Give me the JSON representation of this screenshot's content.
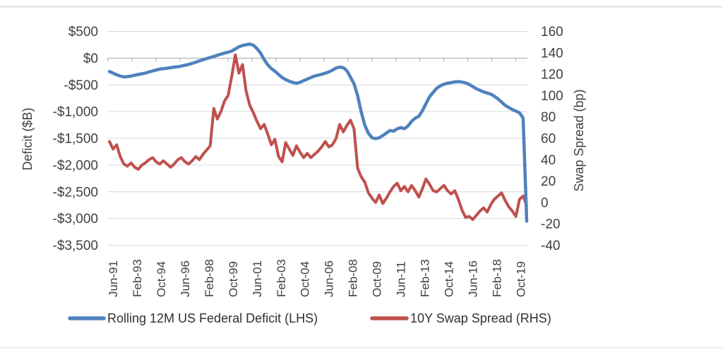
{
  "chart_data": {
    "type": "line",
    "title": "",
    "grid": true,
    "legend_position": "bottom",
    "background_color": "#FFFFFF",
    "gridline_color": "#D9D9D9",
    "zero_axis_color": "#A6A6A6",
    "text_color": "#404040",
    "left_axis": {
      "title": "Deficit ($B)",
      "min": -3500,
      "max": 500,
      "tick_step": 500,
      "tick_labels": [
        "$500",
        "$0",
        "-$500",
        "-$1,000",
        "-$1,500",
        "-$2,000",
        "-$2,500",
        "-$3,000",
        "-$3,500"
      ]
    },
    "right_axis": {
      "title": "Swap Spread (bp)",
      "min": -40,
      "max": 160,
      "tick_step": 20,
      "tick_labels": [
        "160",
        "140",
        "120",
        "100",
        "80",
        "60",
        "40",
        "20",
        "0",
        "-20",
        "-40"
      ]
    },
    "x_axis": {
      "tick_interval_months": 20,
      "total_months": 348,
      "tick_labels": [
        "Jun-91",
        "Feb-93",
        "Oct-94",
        "Jun-96",
        "Feb-98",
        "Oct-99",
        "Jun-01",
        "Feb-03",
        "Oct-04",
        "Jun-06",
        "Feb-08",
        "Oct-09",
        "Jun-11",
        "Feb-13",
        "Oct-14",
        "Jun-16",
        "Feb-18",
        "Oct-19"
      ]
    },
    "categories": [
      "Jun-91",
      "Sep-91",
      "Dec-91",
      "Mar-92",
      "Jun-92",
      "Sep-92",
      "Dec-92",
      "Mar-93",
      "Jun-93",
      "Sep-93",
      "Dec-93",
      "Mar-94",
      "Jun-94",
      "Sep-94",
      "Dec-94",
      "Mar-95",
      "Jun-95",
      "Sep-95",
      "Dec-95",
      "Mar-96",
      "Jun-96",
      "Sep-96",
      "Dec-96",
      "Mar-97",
      "Jun-97",
      "Sep-97",
      "Dec-97",
      "Mar-98",
      "Jun-98",
      "Sep-98",
      "Dec-98",
      "Mar-99",
      "Jun-99",
      "Sep-99",
      "Dec-99",
      "Mar-00",
      "Jun-00",
      "Sep-00",
      "Dec-00",
      "Mar-01",
      "Jun-01",
      "Sep-01",
      "Dec-01",
      "Mar-02",
      "Jun-02",
      "Sep-02",
      "Dec-02",
      "Mar-03",
      "Jun-03",
      "Sep-03",
      "Dec-03",
      "Mar-04",
      "Jun-04",
      "Sep-04",
      "Dec-04",
      "Mar-05",
      "Jun-05",
      "Sep-05",
      "Dec-05",
      "Mar-06",
      "Jun-06",
      "Sep-06",
      "Dec-06",
      "Mar-07",
      "Jun-07",
      "Sep-07",
      "Dec-07",
      "Mar-08",
      "Jun-08",
      "Sep-08",
      "Dec-08",
      "Mar-09",
      "Jun-09",
      "Sep-09",
      "Dec-09",
      "Mar-10",
      "Jun-10",
      "Sep-10",
      "Dec-10",
      "Mar-11",
      "Jun-11",
      "Sep-11",
      "Dec-11",
      "Mar-12",
      "Jun-12",
      "Sep-12",
      "Dec-12",
      "Mar-13",
      "Jun-13",
      "Sep-13",
      "Dec-13",
      "Mar-14",
      "Jun-14",
      "Sep-14",
      "Dec-14",
      "Mar-15",
      "Jun-15",
      "Sep-15",
      "Dec-15",
      "Mar-16",
      "Jun-16",
      "Sep-16",
      "Dec-16",
      "Mar-17",
      "Jun-17",
      "Sep-17",
      "Dec-17",
      "Mar-18",
      "Jun-18",
      "Sep-18",
      "Dec-18",
      "Mar-19",
      "Jun-19",
      "Sep-19",
      "Dec-19",
      "Mar-20",
      "Jun-20"
    ],
    "series": [
      {
        "name": "Rolling 12M US Federal Deficit (LHS)",
        "axis": "left",
        "color": "#4F81BD",
        "stroke_width": 4.5,
        "values": [
          -250,
          -280,
          -310,
          -335,
          -350,
          -345,
          -335,
          -320,
          -305,
          -292,
          -280,
          -258,
          -240,
          -222,
          -205,
          -197,
          -188,
          -178,
          -168,
          -160,
          -148,
          -133,
          -118,
          -98,
          -75,
          -52,
          -30,
          -8,
          12,
          32,
          55,
          75,
          95,
          112,
          132,
          172,
          212,
          236,
          252,
          263,
          242,
          180,
          95,
          -25,
          -125,
          -195,
          -245,
          -305,
          -362,
          -402,
          -432,
          -456,
          -470,
          -452,
          -422,
          -392,
          -362,
          -335,
          -318,
          -302,
          -282,
          -258,
          -225,
          -185,
          -165,
          -178,
          -235,
          -355,
          -480,
          -700,
          -1005,
          -1255,
          -1405,
          -1490,
          -1505,
          -1490,
          -1448,
          -1400,
          -1352,
          -1365,
          -1322,
          -1298,
          -1320,
          -1268,
          -1182,
          -1122,
          -1088,
          -982,
          -852,
          -722,
          -642,
          -562,
          -518,
          -488,
          -468,
          -458,
          -445,
          -438,
          -448,
          -462,
          -492,
          -532,
          -572,
          -602,
          -632,
          -652,
          -672,
          -712,
          -762,
          -822,
          -882,
          -922,
          -962,
          -992,
          -1022,
          -1120,
          -3050
        ]
      },
      {
        "name": "10Y Swap Spread (RHS)",
        "axis": "right",
        "color": "#C0504D",
        "stroke_width": 4,
        "values": [
          57,
          50,
          54,
          43,
          36,
          34,
          37,
          33,
          31,
          35,
          37,
          40,
          42,
          38,
          36,
          39,
          36,
          33,
          36,
          40,
          42,
          38,
          36,
          39,
          43,
          40,
          45,
          49,
          53,
          88,
          78,
          85,
          95,
          100,
          118,
          138,
          121,
          129,
          104,
          91,
          84,
          76,
          69,
          73,
          64,
          54,
          59,
          43,
          38,
          56,
          50,
          44,
          53,
          47,
          42,
          46,
          42,
          45,
          48,
          52,
          57,
          52,
          54,
          60,
          73,
          66,
          72,
          77,
          69,
          32,
          24,
          19,
          9,
          4,
          0,
          7,
          -1,
          4,
          10,
          15,
          18,
          11,
          15,
          10,
          16,
          11,
          5,
          13,
          22,
          17,
          11,
          10,
          13,
          16,
          11,
          8,
          11,
          3,
          -7,
          -14,
          -13,
          -16,
          -12,
          -8,
          -5,
          -9,
          -2,
          3,
          6,
          9,
          2,
          -4,
          -8,
          -13,
          3,
          6,
          -3
        ]
      }
    ]
  }
}
